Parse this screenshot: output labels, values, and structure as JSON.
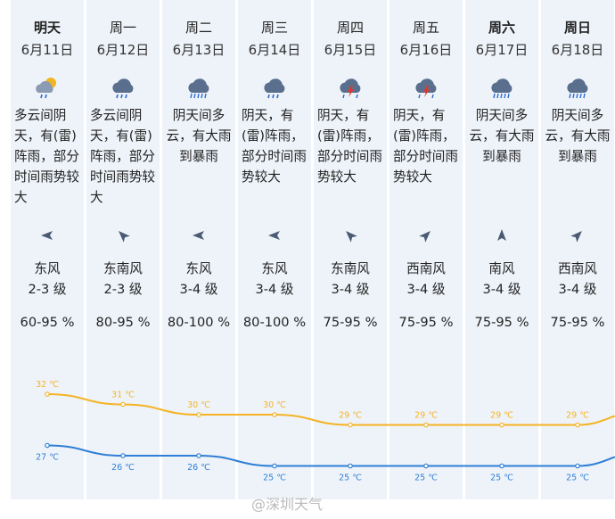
{
  "days": [
    {
      "day": "明天",
      "bold": true,
      "date": "6月11日",
      "icon": "cloudy-sun-rain-icon",
      "desc": "多云间阴天，有(雷)阵雨，部分时间雨势较大",
      "wind_arrow": "arrow-left-icon",
      "wind_dir": "东风",
      "wind_level": "2-3 级",
      "humidity": "60-95 %",
      "high": "32 ℃",
      "low": "27 ℃",
      "high_v": 32,
      "low_v": 27
    },
    {
      "day": "周一",
      "bold": false,
      "date": "6月12日",
      "icon": "rain-cloud-icon",
      "desc": "多云间阴天，有(雷)阵雨，部分时间雨势较大",
      "wind_arrow": "arrow-upleft-icon",
      "wind_dir": "东南风",
      "wind_level": "2-3 级",
      "humidity": "80-95 %",
      "high": "31 ℃",
      "low": "26 ℃",
      "high_v": 31,
      "low_v": 26
    },
    {
      "day": "周二",
      "bold": false,
      "date": "6月13日",
      "icon": "heavy-rain-icon",
      "desc": "阴天间多云，有大雨到暴雨",
      "wind_arrow": "arrow-left-icon",
      "wind_dir": "东风",
      "wind_level": "3-4 级",
      "humidity": "80-100 %",
      "high": "30 ℃",
      "low": "26 ℃",
      "high_v": 30,
      "low_v": 26
    },
    {
      "day": "周三",
      "bold": false,
      "date": "6月14日",
      "icon": "rain-cloud-icon",
      "desc": "阴天，有(雷)阵雨，部分时间雨势较大",
      "wind_arrow": "arrow-left-icon",
      "wind_dir": "东风",
      "wind_level": "3-4 级",
      "humidity": "80-100 %",
      "high": "30 ℃",
      "low": "25 ℃",
      "high_v": 30,
      "low_v": 25
    },
    {
      "day": "周四",
      "bold": false,
      "date": "6月15日",
      "icon": "thunderstorm-icon",
      "desc": "阴天，有(雷)阵雨，部分时间雨势较大",
      "wind_arrow": "arrow-upleft-icon",
      "wind_dir": "东南风",
      "wind_level": "3-4 级",
      "humidity": "75-95 %",
      "high": "29 ℃",
      "low": "25 ℃",
      "high_v": 29,
      "low_v": 25
    },
    {
      "day": "周五",
      "bold": false,
      "date": "6月16日",
      "icon": "thunderstorm-icon",
      "desc": "阴天，有(雷)阵雨，部分时间雨势较大",
      "wind_arrow": "arrow-upright-icon",
      "wind_dir": "西南风",
      "wind_level": "3-4 级",
      "humidity": "75-95 %",
      "high": "29 ℃",
      "low": "25 ℃",
      "high_v": 29,
      "low_v": 25
    },
    {
      "day": "周六",
      "bold": true,
      "date": "6月17日",
      "icon": "heavy-rain-icon",
      "desc": "阴天间多云，有大雨到暴雨",
      "wind_arrow": "arrow-up-icon",
      "wind_dir": "南风",
      "wind_level": "3-4 级",
      "humidity": "75-95 %",
      "high": "29 ℃",
      "low": "25 ℃",
      "high_v": 29,
      "low_v": 25
    },
    {
      "day": "周日",
      "bold": true,
      "date": "6月18日",
      "icon": "heavy-rain-icon",
      "desc": "阴天间多云，有大雨到暴雨",
      "wind_arrow": "arrow-upright-icon",
      "wind_dir": "西南风",
      "wind_level": "3-4 级",
      "humidity": "75-95 %",
      "high": "29 ℃",
      "low": "25 ℃",
      "high_v": 29,
      "low_v": 25
    }
  ],
  "chart_data": {
    "type": "line",
    "categories": [
      "6月11日",
      "6月12日",
      "6月13日",
      "6月14日",
      "6月15日",
      "6月16日",
      "6月17日",
      "6月18日"
    ],
    "series": [
      {
        "values": [
          32,
          31,
          30,
          30,
          29,
          29,
          29,
          29
        ]
      },
      {
        "values": [
          27,
          26,
          26,
          25,
          25,
          25,
          25,
          25
        ]
      }
    ],
    "colors": {
      "high": "#f5b325",
      "low": "#2f7fd6"
    }
  },
  "watermark": "@深圳天气"
}
